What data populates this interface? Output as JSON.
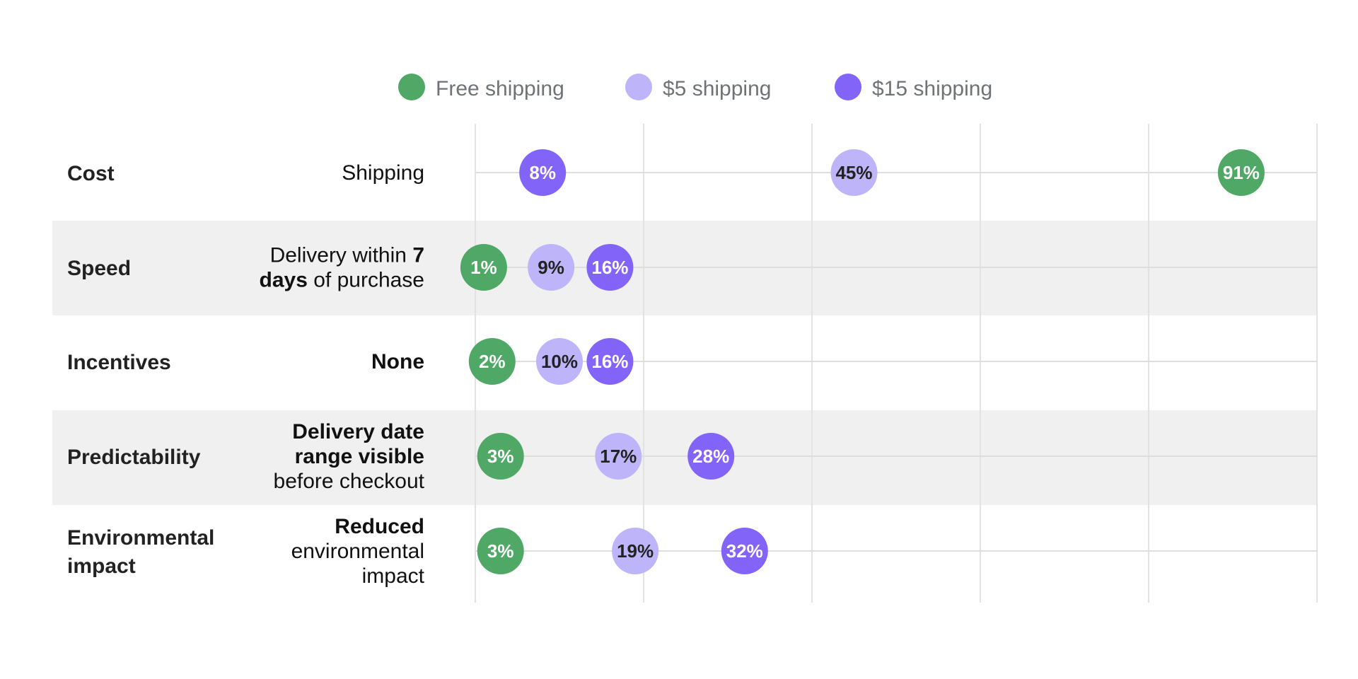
{
  "chart_data": {
    "type": "scatter",
    "xlim": [
      0,
      100
    ],
    "grid": true,
    "legend_position": "top-center",
    "series": [
      {
        "name": "Free shipping",
        "color": "#4fa866",
        "label_color": "#ffffff"
      },
      {
        "name": "$5 shipping",
        "color": "#bdb4fa",
        "label_color": "#222222"
      },
      {
        "name": "$15 shipping",
        "color": "#8364f9",
        "label_color": "#ffffff"
      }
    ],
    "rows": [
      {
        "category": [
          "Cost"
        ],
        "attribute": [
          [
            {
              "t": "Shipping",
              "b": false
            }
          ]
        ],
        "values": [
          91,
          45,
          8
        ],
        "labels": [
          "91%",
          "45%",
          "8%"
        ],
        "shaded": false
      },
      {
        "category": [
          "Speed"
        ],
        "attribute": [
          [
            {
              "t": "Delivery within ",
              "b": false
            },
            {
              "t": "7",
              "b": true
            }
          ],
          [
            {
              "t": "days",
              "b": true
            },
            {
              "t": " of purchase",
              "b": false
            }
          ]
        ],
        "values": [
          1,
          9,
          16
        ],
        "labels": [
          "1%",
          "9%",
          "16%"
        ],
        "shaded": true
      },
      {
        "category": [
          "Incentives"
        ],
        "attribute": [
          [
            {
              "t": "None",
              "b": true
            }
          ]
        ],
        "values": [
          2,
          10,
          16
        ],
        "labels": [
          "2%",
          "10%",
          "16%"
        ],
        "shaded": false
      },
      {
        "category": [
          "Predictability"
        ],
        "attribute": [
          [
            {
              "t": "Delivery date",
              "b": true
            }
          ],
          [
            {
              "t": "range visible",
              "b": true
            }
          ],
          [
            {
              "t": "before checkout",
              "b": false
            }
          ]
        ],
        "values": [
          3,
          17,
          28
        ],
        "labels": [
          "3%",
          "17%",
          "28%"
        ],
        "shaded": true
      },
      {
        "category": [
          "Environmental",
          "impact"
        ],
        "attribute": [
          [
            {
              "t": "Reduced",
              "b": true
            }
          ],
          [
            {
              "t": "environmental",
              "b": false
            }
          ],
          [
            {
              "t": "impact",
              "b": false
            }
          ]
        ],
        "values": [
          3,
          19,
          32
        ],
        "labels": [
          "3%",
          "19%",
          "32%"
        ],
        "shaded": false
      }
    ]
  }
}
